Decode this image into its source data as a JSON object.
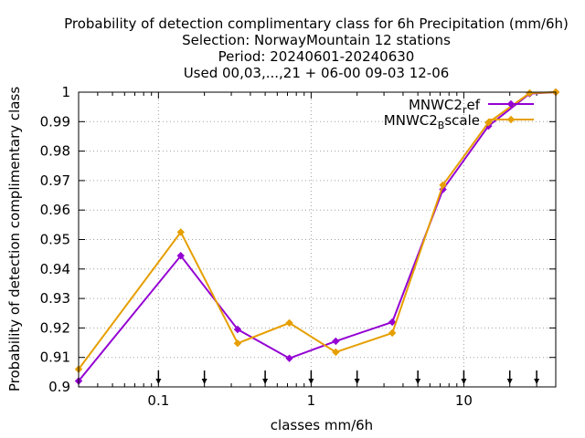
{
  "chart_data": {
    "type": "line",
    "title_lines": [
      "Probability of detection complimentary class  for 6h Precipitation (mm/6h)",
      "Selection: NorwayMountain     12 stations",
      "Period: 20240601-20240630",
      "Used 00,03,...,21 + 06-00 09-03 12-06"
    ],
    "xlabel": "classes mm/6h",
    "ylabel": "Probability of detection complimentary class",
    "x_scale": "log",
    "xlim": [
      0.03,
      40
    ],
    "ylim": [
      0.9,
      1.0
    ],
    "x_ticks": [
      0.1,
      1,
      10
    ],
    "x_tick_labels": [
      "0.1",
      "1",
      "10"
    ],
    "y_ticks": [
      0.9,
      0.91,
      0.92,
      0.93,
      0.94,
      0.95,
      0.96,
      0.97,
      0.98,
      0.99,
      1.0
    ],
    "y_tick_labels": [
      "0.9",
      "0.91",
      "0.92",
      "0.93",
      "0.94",
      "0.95",
      "0.96",
      "0.97",
      "0.98",
      "0.99",
      "1"
    ],
    "grid": true,
    "legend_position": "top-right",
    "class_threshold_arrows": [
      0.1,
      0.2,
      0.5,
      1,
      2,
      5,
      10,
      20,
      30
    ],
    "series": [
      {
        "name_main": "MNWC2",
        "name_sub": "r",
        "name_rest": "ef",
        "color": "#9400d3",
        "x": [
          0.03,
          0.14,
          0.33,
          0.72,
          1.45,
          3.4,
          7.3,
          14.5,
          27,
          40
        ],
        "y": [
          0.902,
          0.9445,
          0.9195,
          0.9097,
          0.9155,
          0.922,
          0.967,
          0.9885,
          0.9995,
          1.0
        ]
      },
      {
        "name_main": "MNWC2",
        "name_sub": "B",
        "name_rest": "scale",
        "color": "#e69f00",
        "x": [
          0.03,
          0.14,
          0.33,
          0.72,
          1.45,
          3.4,
          7.3,
          14.5,
          27,
          40
        ],
        "y": [
          0.906,
          0.9525,
          0.9148,
          0.9217,
          0.9118,
          0.9183,
          0.9685,
          0.9897,
          0.9997,
          1.0
        ]
      }
    ]
  }
}
